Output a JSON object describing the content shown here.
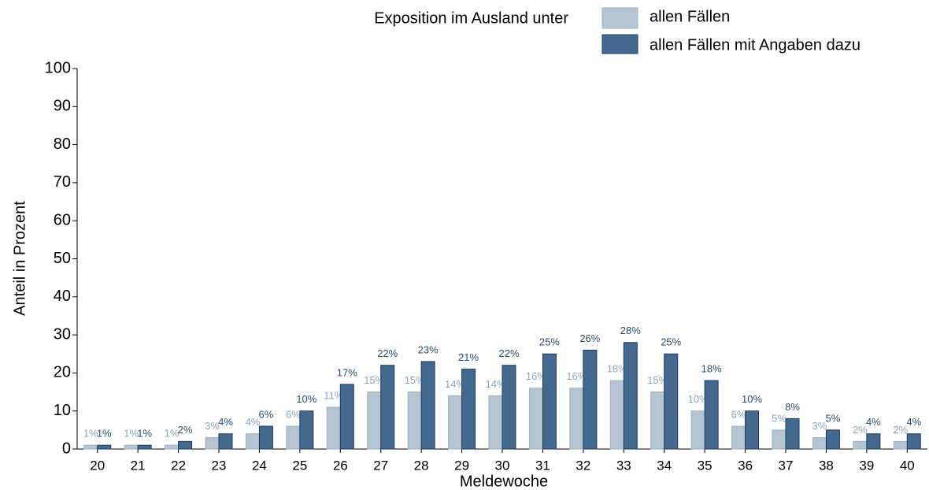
{
  "chart_data": {
    "type": "bar",
    "legend_title": "Exposition im Ausland unter",
    "x_label": "Meldewoche",
    "y_label": "Anteil in Prozent",
    "categories": [
      "20",
      "21",
      "22",
      "23",
      "24",
      "25",
      "26",
      "27",
      "28",
      "29",
      "30",
      "31",
      "32",
      "33",
      "34",
      "35",
      "36",
      "37",
      "38",
      "39",
      "40"
    ],
    "series": [
      {
        "name": "allen Fällen",
        "color": "#b5c4d1",
        "label_color": "#8ba3bb",
        "values": [
          1,
          1,
          1,
          3,
          4,
          6,
          11,
          15,
          15,
          14,
          14,
          16,
          16,
          18,
          15,
          10,
          6,
          5,
          3,
          2,
          2
        ],
        "value_labels": [
          "1%",
          "1%",
          "1%",
          "3%",
          "4%",
          "6%",
          "11%",
          "15%",
          "15%",
          "14%",
          "14%",
          "16%",
          "16%",
          "18%",
          "15%",
          "10%",
          "6%",
          "5%",
          "3%",
          "2%",
          "2%"
        ]
      },
      {
        "name": "allen Fällen mit Angaben dazu",
        "color": "#43698e",
        "label_color": "#2a4a70",
        "values": [
          1,
          1,
          2,
          4,
          6,
          10,
          17,
          22,
          23,
          21,
          22,
          25,
          26,
          28,
          25,
          18,
          10,
          8,
          5,
          4,
          4
        ],
        "value_labels": [
          "1%",
          "1%",
          "2%",
          "4%",
          "6%",
          "10%",
          "17%",
          "22%",
          "23%",
          "21%",
          "22%",
          "25%",
          "26%",
          "28%",
          "25%",
          "18%",
          "10%",
          "8%",
          "5%",
          "4%",
          "4%"
        ]
      }
    ],
    "ylim": [
      0,
      100
    ],
    "yticks": [
      0,
      10,
      20,
      30,
      40,
      50,
      60,
      70,
      80,
      90,
      100
    ],
    "grid": false
  }
}
